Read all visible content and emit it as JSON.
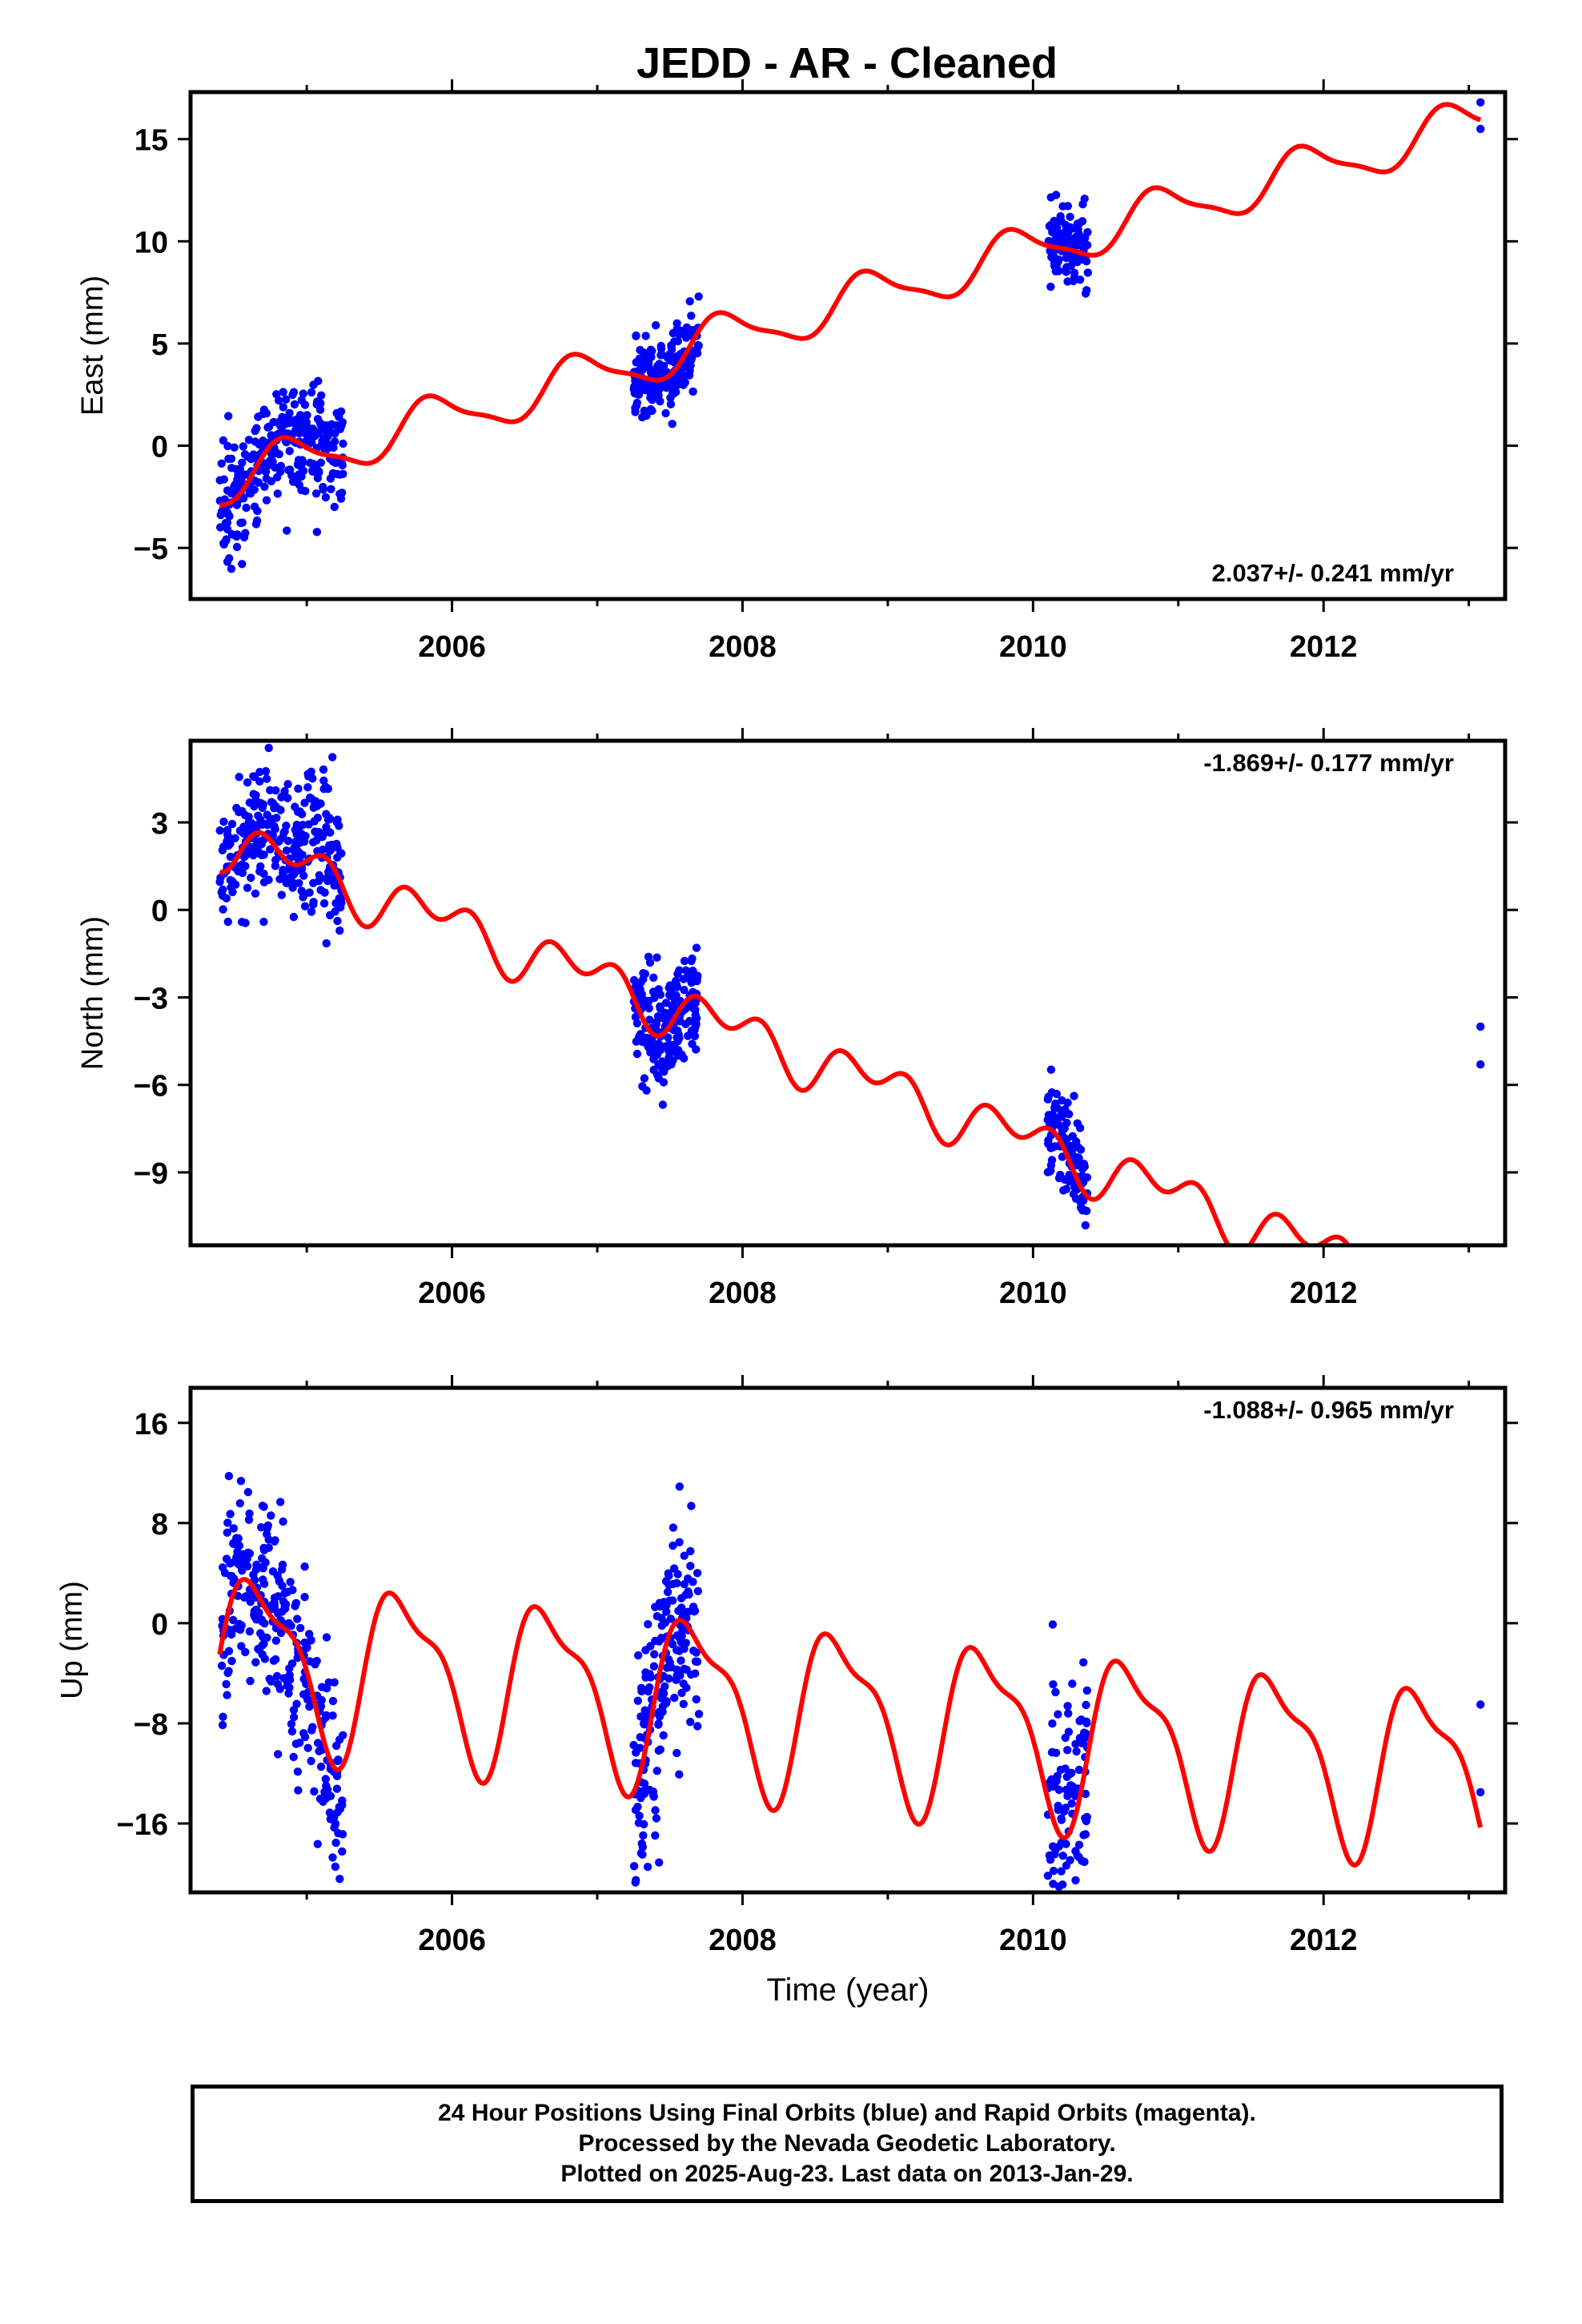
{
  "chart_data": [
    {
      "type": "scatter",
      "title": "JEDD  - AR - Cleaned",
      "ylabel": "East (mm)",
      "xlabel": "",
      "xlim": [
        2004.2,
        2013.25
      ],
      "ylim": [
        -7.5,
        17.3
      ],
      "yticks": [
        15,
        10,
        5,
        0,
        -5
      ],
      "xticks": [
        2006,
        2008,
        2010,
        2012
      ],
      "rate_label": "2.037+/- 0.241 mm/yr",
      "rate_placement": "bottom-right",
      "point_color": "#0000ff",
      "fit_color": "#ff0000",
      "model": {
        "ref": 2004.4,
        "offset": -1.8,
        "rate": 2.037,
        "annual_sin": 0.2,
        "annual_cos": -1.1,
        "semi_sin": -0.3,
        "semi_cos": 0.0
      },
      "clusters": [
        {
          "from": 2004.4,
          "to": 2004.95,
          "count": 190,
          "spread": 1.3,
          "shift": 0.0
        },
        {
          "from": 2004.95,
          "to": 2005.25,
          "count": 110,
          "spread": 1.3,
          "shift": 0.5
        },
        {
          "from": 2007.25,
          "to": 2007.7,
          "count": 200,
          "spread": 0.9,
          "shift": 0.0
        },
        {
          "from": 2010.1,
          "to": 2010.38,
          "count": 110,
          "spread": 1.0,
          "shift": 0.0
        }
      ],
      "points": [
        {
          "x": 2013.08,
          "y": 16.8
        },
        {
          "x": 2013.08,
          "y": 15.5
        }
      ]
    },
    {
      "type": "scatter",
      "title": "",
      "ylabel": "North (mm)",
      "xlabel": "",
      "xlim": [
        2004.2,
        2013.25
      ],
      "ylim": [
        -11.5,
        5.8
      ],
      "yticks": [
        3,
        0,
        -3,
        -6,
        -9
      ],
      "xticks": [
        2006,
        2008,
        2010,
        2012
      ],
      "rate_label": "-1.869+/- 0.177 mm/yr",
      "rate_placement": "top-right",
      "point_color": "#0000ff",
      "fit_color": "#ff0000",
      "model": {
        "ref": 2004.4,
        "offset": 2.5,
        "rate": -1.869,
        "annual_sin": 0.0,
        "annual_cos": -0.6,
        "semi_sin": 0.0,
        "semi_cos": -0.6
      },
      "clusters": [
        {
          "from": 2004.4,
          "to": 2004.95,
          "count": 190,
          "spread": 1.1,
          "shift": 0.3
        },
        {
          "from": 2004.95,
          "to": 2005.25,
          "count": 110,
          "spread": 1.5,
          "shift": 0.4
        },
        {
          "from": 2007.25,
          "to": 2007.7,
          "count": 200,
          "spread": 1.0,
          "shift": 0.0
        },
        {
          "from": 2010.1,
          "to": 2010.38,
          "count": 110,
          "spread": 0.9,
          "shift": 0.2
        }
      ],
      "points": [
        {
          "x": 2013.08,
          "y": -4.0
        },
        {
          "x": 2013.08,
          "y": -5.3
        }
      ]
    },
    {
      "type": "scatter",
      "title": "",
      "ylabel": "Up (mm)",
      "xlabel": "Time (year)",
      "xlim": [
        2004.2,
        2013.25
      ],
      "ylim": [
        -21.5,
        18.8
      ],
      "yticks": [
        16,
        8,
        0,
        -8,
        -16
      ],
      "xticks": [
        2006,
        2008,
        2010,
        2012
      ],
      "rate_label": "-1.088+/- 0.965 mm/yr",
      "rate_placement": "top-right",
      "point_color": "#0000ff",
      "fit_color": "#ff0000",
      "model": {
        "ref": 2004.4,
        "offset": -2.5,
        "rate": -1.088,
        "annual_sin": 6.3,
        "annual_cos": -1.0,
        "semi_sin": 2.0,
        "semi_cos": 1.0
      },
      "clusters": [
        {
          "from": 2004.4,
          "to": 2004.85,
          "count": 170,
          "spread": 4.0,
          "shift": 1.0
        },
        {
          "from": 2004.85,
          "to": 2005.25,
          "count": 130,
          "spread": 4.0,
          "shift": -1.5
        },
        {
          "from": 2007.25,
          "to": 2007.7,
          "count": 200,
          "spread": 4.5,
          "shift": 0.0
        },
        {
          "from": 2010.1,
          "to": 2010.38,
          "count": 110,
          "spread": 5.0,
          "shift": 0.5
        }
      ],
      "points": [
        {
          "x": 2013.08,
          "y": -6.5
        },
        {
          "x": 2013.08,
          "y": -13.5
        }
      ]
    }
  ],
  "caption": {
    "line1": "24 Hour Positions Using Final Orbits (blue) and Rapid Orbits (magenta).",
    "line2": "Processed by the Nevada Geodetic Laboratory.",
    "line3": "Plotted on 2025-Aug-23. Last data on 2013-Jan-29."
  }
}
